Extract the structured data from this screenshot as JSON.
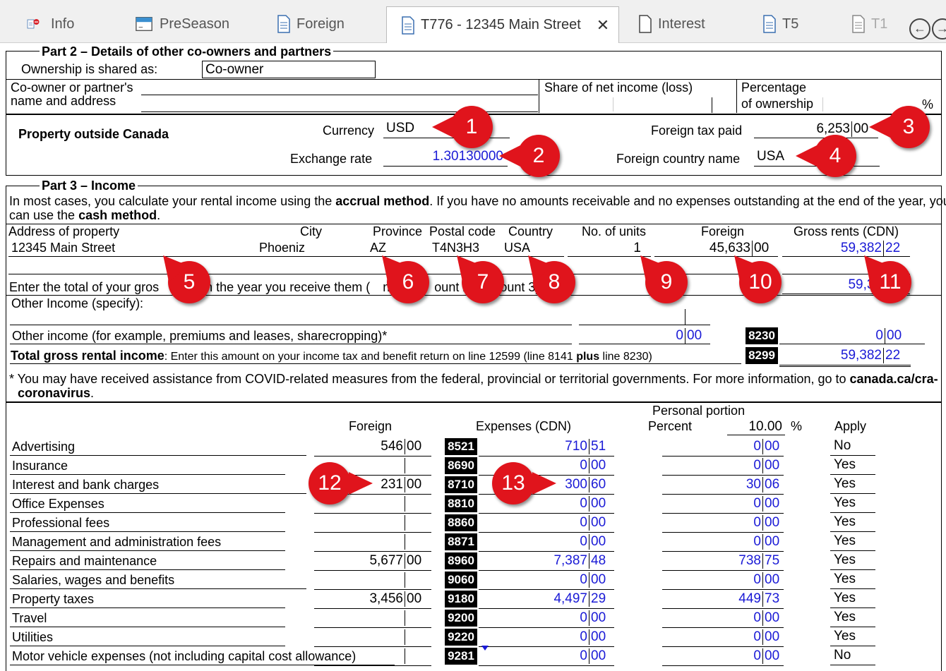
{
  "tabs": [
    {
      "label": "Info",
      "icon": "info-doc-icon"
    },
    {
      "label": "PreSeason",
      "icon": "preseason-icon"
    },
    {
      "label": "Foreign",
      "icon": "document-icon"
    },
    {
      "label": "T776 - 12345 Main Street",
      "icon": "document-icon",
      "active": true
    },
    {
      "label": "Interest",
      "icon": "blank-document-icon"
    },
    {
      "label": "T5",
      "icon": "document-icon"
    },
    {
      "label": "T1",
      "icon": "document-icon"
    }
  ],
  "part2": {
    "title": "Part 2 – Details of other co-owners and partners",
    "ownership_label": "Ownership is shared as:",
    "ownership_value": "Co-owner",
    "coowner_label_1": "Co-owner or partner's",
    "coowner_label_2": "name and address",
    "share_label": "Share of net income (loss)",
    "pct_label_1": "Percentage",
    "pct_label_2": "of ownership",
    "pct_unit": "%"
  },
  "outside": {
    "title": "Property outside Canada",
    "currency_label": "Currency",
    "currency_value": "USD",
    "exchange_label": "Exchange rate",
    "exchange_value": "1.30130000",
    "tax_label": "Foreign tax paid",
    "tax_dollars": "6,253",
    "tax_cents": "00",
    "country_label": "Foreign country name",
    "country_value": "USA"
  },
  "part3": {
    "title": "Part 3 – Income",
    "intro_1a": "In most cases, you calculate your rental income using the ",
    "intro_1b": "accrual method",
    "intro_1c": ". If you have no amounts receivable and no expenses outstanding at the end of the year, you",
    "intro_2a": "can use the ",
    "intro_2b": "cash method",
    "intro_2c": ".",
    "col_address": "Address of property",
    "col_city": "City",
    "col_province": "Province",
    "col_postal": "Postal code",
    "col_country": "Country",
    "col_units": "No. of units",
    "col_foreign": "Foreign",
    "col_gross": "Gross rents (CDN)",
    "address": "12345 Main Street",
    "city": "Phoeniz",
    "province": "AZ",
    "postal": "T4N3H3",
    "country": "USA",
    "units": "1",
    "foreign_dollars": "45,633",
    "foreign_cents": "00",
    "gross_dollars": "59,382",
    "gross_cents": "22",
    "total_line_a": "Enter the total of your gros",
    "total_line_b": "in the year you receive them (",
    "total_line_c": "nt 1",
    "total_line_d": "pl",
    "total_line_e": "ount 2",
    "total_line_f": "amount 3).",
    "total_value": "59,38",
    "other_specify": "Other Income (specify):",
    "other_income_label": "Other income (for example, premiums and leases, sharecropping)*",
    "other_dollars": "0",
    "other_cents": "00",
    "code_8230": "8230",
    "code_8230_dollars": "0",
    "code_8230_cents": "00",
    "total_gross_bold": "Total gross rental income",
    "total_gross_rest": ": Enter this amount on your income tax and benefit return on line 12599 (line 8141 ",
    "total_gross_plus": "plus",
    "total_gross_end": " line 8230)",
    "code_8299": "8299",
    "total_gross_dollars": "59,382",
    "total_gross_cents": "22",
    "footnote_a": "* You may have received assistance from COVID-related measures from the federal, provincial or territorial governments. For more information, go to ",
    "footnote_b": "canada.ca/cra-",
    "footnote_c": "coronavirus",
    "footnote_d": "."
  },
  "expenses": {
    "personal_portion": "Personal portion",
    "col_foreign": "Foreign",
    "col_expenses": "Expenses (CDN)",
    "col_percent": "Percent",
    "percent_value": "10.00",
    "percent_unit": "%",
    "col_apply": "Apply",
    "rows": [
      {
        "label": "Advertising",
        "foreign_d": "546",
        "foreign_c": "00",
        "code": "8521",
        "cdn_d": "710",
        "cdn_c": "51",
        "pers_d": "0",
        "pers_c": "00",
        "apply": "No"
      },
      {
        "label": "Insurance",
        "foreign_d": "",
        "foreign_c": "",
        "code": "8690",
        "cdn_d": "0",
        "cdn_c": "00",
        "pers_d": "0",
        "pers_c": "00",
        "apply": "Yes"
      },
      {
        "label": "Interest and bank charges",
        "foreign_d": "231",
        "foreign_c": "00",
        "code": "8710",
        "cdn_d": "300",
        "cdn_c": "60",
        "pers_d": "30",
        "pers_c": "06",
        "apply": "Yes"
      },
      {
        "label": "Office Expenses",
        "foreign_d": "",
        "foreign_c": "",
        "code": "8810",
        "cdn_d": "0",
        "cdn_c": "00",
        "pers_d": "0",
        "pers_c": "00",
        "apply": "Yes"
      },
      {
        "label": "Professional fees",
        "foreign_d": "",
        "foreign_c": "",
        "code": "8860",
        "cdn_d": "0",
        "cdn_c": "00",
        "pers_d": "0",
        "pers_c": "00",
        "apply": "Yes"
      },
      {
        "label": "Management and administration fees",
        "foreign_d": "",
        "foreign_c": "",
        "code": "8871",
        "cdn_d": "0",
        "cdn_c": "00",
        "pers_d": "0",
        "pers_c": "00",
        "apply": "Yes"
      },
      {
        "label": "Repairs and maintenance",
        "foreign_d": "5,677",
        "foreign_c": "00",
        "code": "8960",
        "cdn_d": "7,387",
        "cdn_c": "48",
        "pers_d": "738",
        "pers_c": "75",
        "apply": "Yes"
      },
      {
        "label": "Salaries, wages and benefits",
        "foreign_d": "",
        "foreign_c": "",
        "code": "9060",
        "cdn_d": "0",
        "cdn_c": "00",
        "pers_d": "0",
        "pers_c": "00",
        "apply": "Yes"
      },
      {
        "label": "Property taxes",
        "foreign_d": "3,456",
        "foreign_c": "00",
        "code": "9180",
        "cdn_d": "4,497",
        "cdn_c": "29",
        "pers_d": "449",
        "pers_c": "73",
        "apply": "Yes"
      },
      {
        "label": "Travel",
        "foreign_d": "",
        "foreign_c": "",
        "code": "9200",
        "cdn_d": "0",
        "cdn_c": "00",
        "pers_d": "0",
        "pers_c": "00",
        "apply": "Yes"
      },
      {
        "label": "Utilities",
        "foreign_d": "",
        "foreign_c": "",
        "code": "9220",
        "cdn_d": "0",
        "cdn_c": "00",
        "pers_d": "0",
        "pers_c": "00",
        "apply": "Yes"
      },
      {
        "label": "Motor vehicle expenses (not including capital cost allowance)",
        "foreign_d": "",
        "foreign_c": "",
        "code": "9281",
        "cdn_d": "0",
        "cdn_c": "00",
        "pers_d": "0",
        "pers_c": "00",
        "apply": "No"
      }
    ]
  },
  "callouts": [
    "1",
    "2",
    "3",
    "4",
    "5",
    "6",
    "7",
    "8",
    "9",
    "10",
    "11",
    "12",
    "13"
  ],
  "colors": {
    "callout": "#e0141c",
    "value_blue": "#1a1ad6",
    "code_bg": "#000000"
  }
}
